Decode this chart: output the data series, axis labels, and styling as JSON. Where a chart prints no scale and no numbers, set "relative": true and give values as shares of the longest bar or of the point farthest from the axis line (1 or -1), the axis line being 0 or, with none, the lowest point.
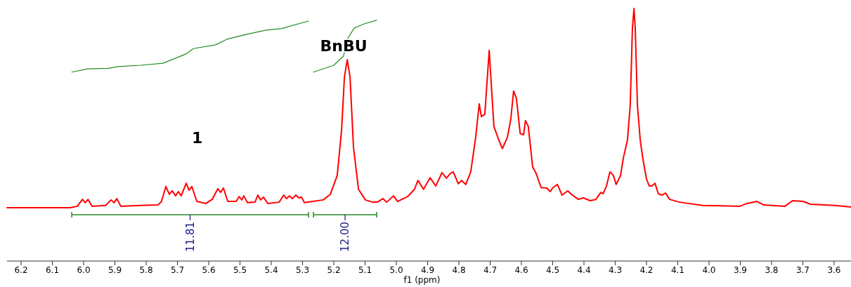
{
  "chart_data": {
    "type": "line",
    "relative": true,
    "xlabel": "f1 (ppm)",
    "xlim": [
      6.245,
      3.546
    ],
    "xticks": [
      {
        "value": 6.2,
        "label": "6.2"
      },
      {
        "value": 6.1,
        "label": "6.1"
      },
      {
        "value": 6,
        "label": "6.0"
      },
      {
        "value": 5.9,
        "label": "5.9"
      },
      {
        "value": 5.8,
        "label": "5.8"
      },
      {
        "value": 5.7,
        "label": "5.7"
      },
      {
        "value": 5.6,
        "label": "5.6"
      },
      {
        "value": 5.5,
        "label": "5.5"
      },
      {
        "value": 5.4,
        "label": "5.4"
      },
      {
        "value": 5.3,
        "label": "5.3"
      },
      {
        "value": 5.2,
        "label": "5.2"
      },
      {
        "value": 5.1,
        "label": "5.1"
      },
      {
        "value": 5,
        "label": "5.0"
      },
      {
        "value": 4.9,
        "label": "4.9"
      },
      {
        "value": 4.8,
        "label": "4.8"
      },
      {
        "value": 4.7,
        "label": "4.7"
      },
      {
        "value": 4.6,
        "label": "4.6"
      },
      {
        "value": 4.5,
        "label": "4.5"
      },
      {
        "value": 4.4,
        "label": "4.4"
      },
      {
        "value": 4.3,
        "label": "4.3"
      },
      {
        "value": 4.2,
        "label": "4.2"
      },
      {
        "value": 4.1,
        "label": "4.1"
      },
      {
        "value": 4,
        "label": "4.0"
      },
      {
        "value": 3.9,
        "label": "3.9"
      },
      {
        "value": 3.8,
        "label": "3.8"
      },
      {
        "value": 3.7,
        "label": "3.7"
      },
      {
        "value": 3.6,
        "label": "3.6"
      }
    ],
    "series": [
      {
        "color": "#ff0000",
        "x": [
          6.245,
          6.043,
          6.02,
          6.004,
          5.995,
          5.986,
          5.973,
          5.93,
          5.912,
          5.903,
          5.894,
          5.881,
          5.818,
          5.762,
          5.751,
          5.737,
          5.726,
          5.717,
          5.706,
          5.697,
          5.688,
          5.672,
          5.663,
          5.654,
          5.638,
          5.609,
          5.589,
          5.571,
          5.562,
          5.553,
          5.539,
          5.512,
          5.503,
          5.494,
          5.488,
          5.476,
          5.452,
          5.443,
          5.434,
          5.425,
          5.411,
          5.375,
          5.36,
          5.351,
          5.342,
          5.333,
          5.321,
          5.312,
          5.303,
          5.294,
          5.267,
          5.234,
          5.211,
          5.189,
          5.175,
          5.166,
          5.157,
          5.148,
          5.137,
          5.121,
          5.099,
          5.076,
          5.061,
          5.043,
          5.031,
          5.009,
          4.996,
          4.964,
          4.942,
          4.931,
          4.913,
          4.892,
          4.874,
          4.854,
          4.84,
          4.827,
          4.818,
          4.802,
          4.791,
          4.778,
          4.762,
          4.746,
          4.735,
          4.728,
          4.717,
          4.703,
          4.688,
          4.672,
          4.661,
          4.645,
          4.634,
          4.625,
          4.616,
          4.604,
          4.593,
          4.587,
          4.578,
          4.564,
          4.553,
          4.537,
          4.519,
          4.508,
          4.499,
          4.485,
          4.47,
          4.452,
          4.44,
          4.418,
          4.402,
          4.38,
          4.362,
          4.346,
          4.339,
          4.328,
          4.317,
          4.306,
          4.297,
          4.283,
          4.274,
          4.261,
          4.252,
          4.245,
          4.24,
          4.236,
          4.229,
          4.22,
          4.211,
          4.2,
          4.191,
          4.182,
          4.173,
          4.162,
          4.151,
          4.139,
          4.126,
          4.094,
          4.02,
          3.901,
          3.879,
          3.847,
          3.825,
          3.757,
          3.733,
          3.699,
          3.676,
          3.598,
          3.546
        ],
        "values": [
          0.211,
          0.211,
          0.217,
          0.244,
          0.231,
          0.244,
          0.217,
          0.22,
          0.242,
          0.231,
          0.247,
          0.217,
          0.22,
          0.222,
          0.236,
          0.295,
          0.264,
          0.278,
          0.258,
          0.275,
          0.258,
          0.308,
          0.28,
          0.295,
          0.236,
          0.228,
          0.244,
          0.286,
          0.272,
          0.289,
          0.236,
          0.236,
          0.255,
          0.242,
          0.258,
          0.231,
          0.233,
          0.261,
          0.242,
          0.253,
          0.228,
          0.233,
          0.261,
          0.247,
          0.258,
          0.247,
          0.261,
          0.25,
          0.253,
          0.231,
          0.236,
          0.242,
          0.264,
          0.339,
          0.52,
          0.728,
          0.797,
          0.728,
          0.45,
          0.284,
          0.242,
          0.233,
          0.233,
          0.247,
          0.233,
          0.258,
          0.236,
          0.255,
          0.284,
          0.319,
          0.284,
          0.33,
          0.297,
          0.35,
          0.328,
          0.347,
          0.353,
          0.306,
          0.319,
          0.303,
          0.353,
          0.492,
          0.622,
          0.572,
          0.581,
          0.834,
          0.533,
          0.478,
          0.445,
          0.489,
          0.561,
          0.673,
          0.644,
          0.505,
          0.5,
          0.556,
          0.533,
          0.372,
          0.347,
          0.291,
          0.289,
          0.275,
          0.291,
          0.303,
          0.261,
          0.278,
          0.264,
          0.244,
          0.25,
          0.239,
          0.244,
          0.272,
          0.266,
          0.297,
          0.353,
          0.339,
          0.303,
          0.339,
          0.408,
          0.478,
          0.617,
          0.922,
          1,
          0.922,
          0.617,
          0.478,
          0.4,
          0.325,
          0.297,
          0.297,
          0.308,
          0.266,
          0.261,
          0.269,
          0.244,
          0.233,
          0.22,
          0.217,
          0.228,
          0.236,
          0.222,
          0.217,
          0.239,
          0.236,
          0.225,
          0.22,
          0.214
        ]
      },
      {
        "color": "#228b22",
        "x": [
          6.038,
          5.987,
          5.921,
          5.89,
          5.818,
          5.746,
          5.706,
          5.674,
          5.649,
          5.578,
          5.542,
          5.481,
          5.416,
          5.369,
          5.281
        ],
        "values": [
          0.748,
          0.761,
          0.763,
          0.77,
          0.775,
          0.783,
          0.803,
          0.819,
          0.841,
          0.856,
          0.878,
          0.897,
          0.914,
          0.92,
          0.95
        ]
      },
      {
        "color": "#228b22",
        "x": [
          5.265,
          5.2,
          5.169,
          5.155,
          5.135,
          5.103,
          5.063
        ],
        "values": [
          0.748,
          0.775,
          0.811,
          0.882,
          0.922,
          0.939,
          0.953
        ]
      }
    ],
    "annotations": [
      "1",
      "BnBU",
      "11.81",
      "12.00"
    ]
  }
}
